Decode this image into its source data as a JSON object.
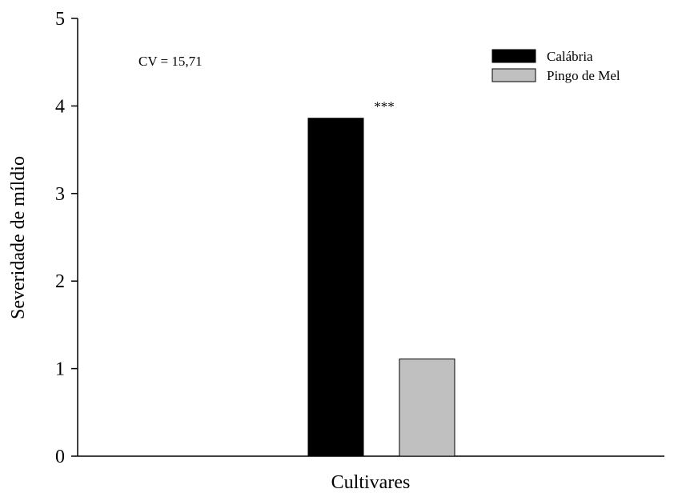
{
  "chart_data": {
    "type": "bar",
    "title": "",
    "xlabel": "Cultivares",
    "ylabel": "Severidade de míldio",
    "ylim": [
      0,
      5
    ],
    "yticks": [
      0,
      1,
      2,
      3,
      4,
      5
    ],
    "grid": false,
    "legend_position": "top-right",
    "annotation": "CV = 15,71",
    "series": [
      {
        "name": "Calábria",
        "value": 3.86,
        "color": "#000000",
        "label": "***"
      },
      {
        "name": "Pingo de Mel",
        "value": 1.11,
        "color": "#c0c0c0",
        "label": ""
      }
    ]
  }
}
